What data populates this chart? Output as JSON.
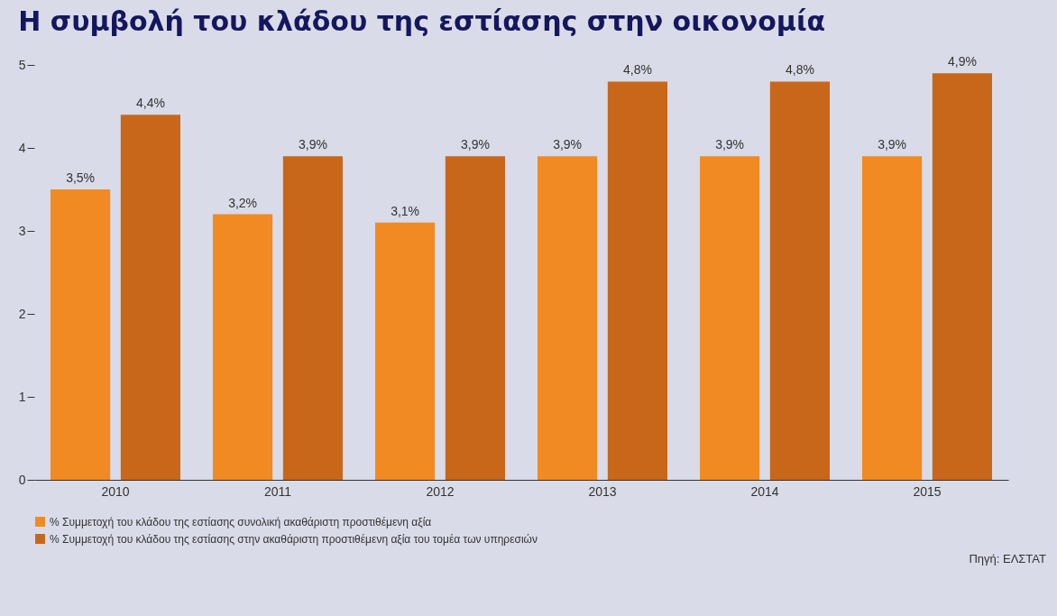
{
  "chart_data": {
    "type": "bar",
    "title": "Η συμβολή του κλάδου της εστίασης στην οικονομία",
    "categories": [
      "2010",
      "2011",
      "2012",
      "2013",
      "2014",
      "2015"
    ],
    "series": [
      {
        "name": "% Συμμετοχή του κλάδου της εστίασης συνολική ακαθάριστη προστιθέμενη αξία",
        "color": "#f18a22",
        "values": [
          3.5,
          3.2,
          3.1,
          3.9,
          3.9,
          3.9
        ],
        "value_labels": [
          "3,5%",
          "3,2%",
          "3,1%",
          "3,9%",
          "3,9%",
          "3,9%"
        ]
      },
      {
        "name": "% Συμμετοχή του κλάδου της εστίασης στην ακαθάριστη προστιθέμενη αξία του τομέα των υπηρεσιών",
        "color": "#c8671a",
        "values": [
          4.4,
          3.9,
          3.9,
          4.8,
          4.8,
          4.9
        ],
        "value_labels": [
          "4,4%",
          "3,9%",
          "3,9%",
          "4,8%",
          "4,8%",
          "4,9%"
        ]
      }
    ],
    "ylim": [
      0,
      5
    ],
    "yticks": [
      0,
      1,
      2,
      3,
      4,
      5
    ],
    "grid": false,
    "legend": "bottom left",
    "annotations": [
      "Πηγή: ΕΛΣΤΑΤ"
    ]
  }
}
